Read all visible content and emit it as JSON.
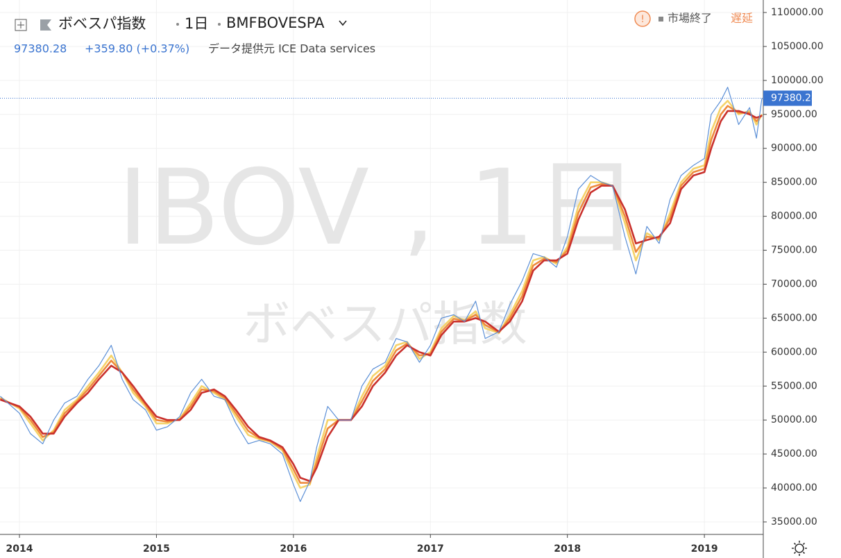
{
  "header": {
    "symbol_name": "ボベスパ指数",
    "interval": "1日",
    "exchange": "BMFBOVESPA",
    "last_price": "97380.28",
    "change": "+359.80 (+0.37%)",
    "source": "データ提供元 ICE Data services",
    "market_status": "市場終了",
    "delay": "遅延"
  },
  "watermark": {
    "line1": "IBOV , 1日",
    "line2": "ボベスパ指数"
  },
  "chart_data": {
    "type": "line",
    "x": [
      2013.86,
      2014.0,
      2014.08,
      2014.17,
      2014.25,
      2014.33,
      2014.42,
      2014.5,
      2014.58,
      2014.67,
      2014.75,
      2014.83,
      2014.92,
      2015.0,
      2015.08,
      2015.17,
      2015.25,
      2015.33,
      2015.42,
      2015.5,
      2015.58,
      2015.67,
      2015.75,
      2015.83,
      2015.92,
      2016.0,
      2016.05,
      2016.12,
      2016.17,
      2016.25,
      2016.33,
      2016.42,
      2016.5,
      2016.58,
      2016.67,
      2016.75,
      2016.83,
      2016.92,
      2017.0,
      2017.08,
      2017.17,
      2017.25,
      2017.33,
      2017.4,
      2017.5,
      2017.58,
      2017.67,
      2017.75,
      2017.83,
      2017.92,
      2018.0,
      2018.08,
      2018.17,
      2018.25,
      2018.33,
      2018.42,
      2018.5,
      2018.58,
      2018.67,
      2018.75,
      2018.83,
      2018.92,
      2019.0,
      2019.05,
      2019.12,
      2019.17,
      2019.25,
      2019.33,
      2019.38,
      2019.42
    ],
    "series": [
      {
        "color": "#f5d36a",
        "values": [
          53300,
          51700,
          49500,
          47000,
          48500,
          51500,
          53000,
          55000,
          57000,
          59500,
          57000,
          54000,
          52000,
          49500,
          49500,
          50200,
          52500,
          55000,
          54000,
          53000,
          50500,
          47800,
          47200,
          46800,
          45500,
          42000,
          40000,
          40500,
          44500,
          50000,
          50000,
          50000,
          53500,
          56500,
          58000,
          61000,
          61500,
          59000,
          60000,
          63500,
          65300,
          64700,
          66000,
          63500,
          62800,
          65500,
          69000,
          73500,
          74000,
          73000,
          75500,
          81500,
          85000,
          85000,
          84500,
          79000,
          73500,
          77500,
          76500,
          80500,
          85000,
          87000,
          87500,
          92500,
          96000,
          97000,
          95000,
          95500,
          93500,
          95000
        ]
      },
      {
        "color": "#ee8a3c",
        "values": [
          53150,
          51850,
          50000,
          47500,
          48250,
          51000,
          52750,
          54500,
          56500,
          58750,
          57000,
          54500,
          52250,
          50000,
          49750,
          50100,
          52000,
          54500,
          54250,
          53250,
          51000,
          48400,
          47350,
          46900,
          45750,
          42750,
          40750,
          40750,
          43750,
          48750,
          50000,
          50000,
          52750,
          55750,
          57500,
          60250,
          61250,
          59500,
          59750,
          63000,
          64900,
          64600,
          65500,
          64000,
          62900,
          65000,
          68250,
          72750,
          73750,
          73250,
          75000,
          80500,
          84250,
          84750,
          84500,
          80000,
          74750,
          77000,
          76750,
          79750,
          84500,
          86500,
          87000,
          91250,
          95000,
          96250,
          95250,
          95250,
          94000,
          94900
        ]
      },
      {
        "color": "#c9302c",
        "values": [
          53000,
          52000,
          50500,
          48000,
          48000,
          50500,
          52500,
          54000,
          56000,
          58000,
          57000,
          55000,
          52500,
          50500,
          50000,
          50000,
          51500,
          54000,
          54500,
          53500,
          51500,
          49000,
          47500,
          47000,
          46000,
          43500,
          41500,
          41000,
          43000,
          47500,
          50000,
          50000,
          52000,
          55000,
          57000,
          59500,
          61000,
          60000,
          59500,
          62500,
          64500,
          64500,
          65000,
          64500,
          63000,
          64500,
          67500,
          72000,
          73500,
          73500,
          74500,
          79500,
          83500,
          84500,
          84500,
          81000,
          76000,
          76500,
          77000,
          79000,
          84000,
          86000,
          86500,
          90000,
          94000,
          95500,
          95500,
          95000,
          94500,
          94800
        ]
      },
      {
        "color": "#5b8fd6",
        "values": [
          53500,
          51000,
          48000,
          46500,
          50000,
          52500,
          53500,
          56000,
          58000,
          61000,
          56000,
          53000,
          51500,
          48500,
          49000,
          50500,
          54000,
          56000,
          53500,
          53000,
          49500,
          46500,
          47000,
          46500,
          45000,
          40500,
          38000,
          41000,
          46000,
          52000,
          50000,
          50000,
          55000,
          57500,
          58500,
          62000,
          61500,
          58500,
          61000,
          65000,
          65500,
          64500,
          67500,
          62000,
          63000,
          67000,
          70500,
          74500,
          74000,
          72500,
          77000,
          84000,
          86000,
          85000,
          84500,
          77000,
          71500,
          78500,
          76000,
          82500,
          86000,
          87500,
          88500,
          95000,
          97000,
          99000,
          93500,
          96000,
          91500,
          97380.28
        ]
      }
    ],
    "xlim": [
      2013.858,
      2019.43
    ],
    "ylim": [
      33160,
      111840
    ],
    "xticks": [
      2014,
      2015,
      2016,
      2017,
      2018,
      2019
    ],
    "yticks": [
      {
        "value": 35000,
        "label": "35000.00"
      },
      {
        "value": 40000,
        "label": "40000.00"
      },
      {
        "value": 45000,
        "label": "45000.00"
      },
      {
        "value": 50000,
        "label": "50000.00"
      },
      {
        "value": 55000,
        "label": "55000.00"
      },
      {
        "value": 60000,
        "label": "60000.00"
      },
      {
        "value": 65000,
        "label": "65000.00"
      },
      {
        "value": 70000,
        "label": "70000.00"
      },
      {
        "value": 75000,
        "label": "75000.00"
      },
      {
        "value": 80000,
        "label": "80000.00"
      },
      {
        "value": 85000,
        "label": "85000.00"
      },
      {
        "value": 90000,
        "label": "90000.00"
      },
      {
        "value": 95000,
        "label": "95000.00"
      },
      {
        "value": 100000,
        "label": "100000.00"
      },
      {
        "value": 105000,
        "label": "105000.00"
      },
      {
        "value": 110000,
        "label": "110000.00"
      }
    ],
    "grid": true
  }
}
